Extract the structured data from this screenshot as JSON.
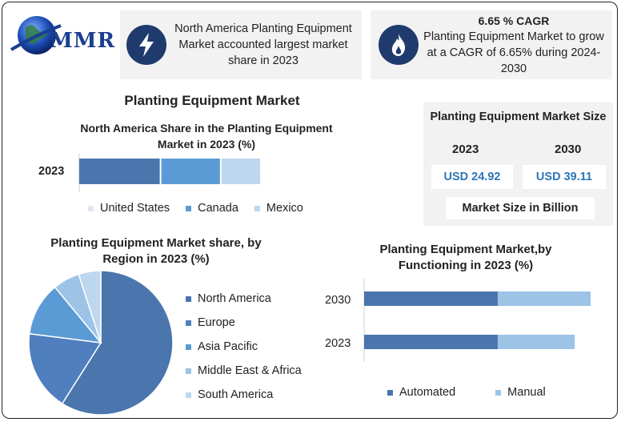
{
  "logo": {
    "text": "MMR",
    "icon": "globe-icon"
  },
  "cards": [
    {
      "icon": "lightning-icon",
      "text": "North America Planting Equipment Market accounted largest market share in 2023"
    },
    {
      "icon": "flame-icon",
      "title": "6.65 % CAGR",
      "text": "Planting Equipment Market to grow at a CAGR of 6.65% during 2024-2030"
    }
  ],
  "main_title": "Planting Equipment Market",
  "market_size": {
    "title": "Planting Equipment Market Size",
    "years": [
      "2023",
      "2030"
    ],
    "values": [
      "USD 24.92",
      "USD 39.11"
    ],
    "footer": "Market Size in Billion"
  },
  "colors": {
    "dark_blue": "#4a76ad",
    "mid_blue": "#5b9bd5",
    "light_blue": "#9dc3e6",
    "pale_blue": "#bdd7ee",
    "size_value": "#2e75b6",
    "icon_bg": "#1f3b6e"
  },
  "chart_data": [
    {
      "type": "bar",
      "orientation": "horizontal-stacked",
      "title": "North America Share in the Planting Equipment Market in 2023 (%)",
      "categories": [
        "2023"
      ],
      "series": [
        {
          "name": "United States",
          "values": [
            45
          ]
        },
        {
          "name": "Canada",
          "values": [
            33
          ]
        },
        {
          "name": "Mexico",
          "values": [
            22
          ]
        }
      ],
      "legend": "bottom"
    },
    {
      "type": "pie",
      "title": "Planting Equipment Market share, by Region in 2023 (%)",
      "labels": [
        "North America",
        "Europe",
        "Asia Pacific",
        "Middle East & Africa",
        "South America"
      ],
      "values": [
        59,
        18,
        12,
        6,
        5
      ],
      "legend": "right"
    },
    {
      "type": "bar",
      "orientation": "horizontal-stacked",
      "title": "Planting Equipment Market,by Functioning in 2023 (%)",
      "categories": [
        "2030",
        "2023"
      ],
      "series": [
        {
          "name": "Automated",
          "values": [
            59,
            59
          ]
        },
        {
          "name": "Manual",
          "values": [
            41,
            34
          ]
        }
      ],
      "legend": "bottom"
    }
  ]
}
